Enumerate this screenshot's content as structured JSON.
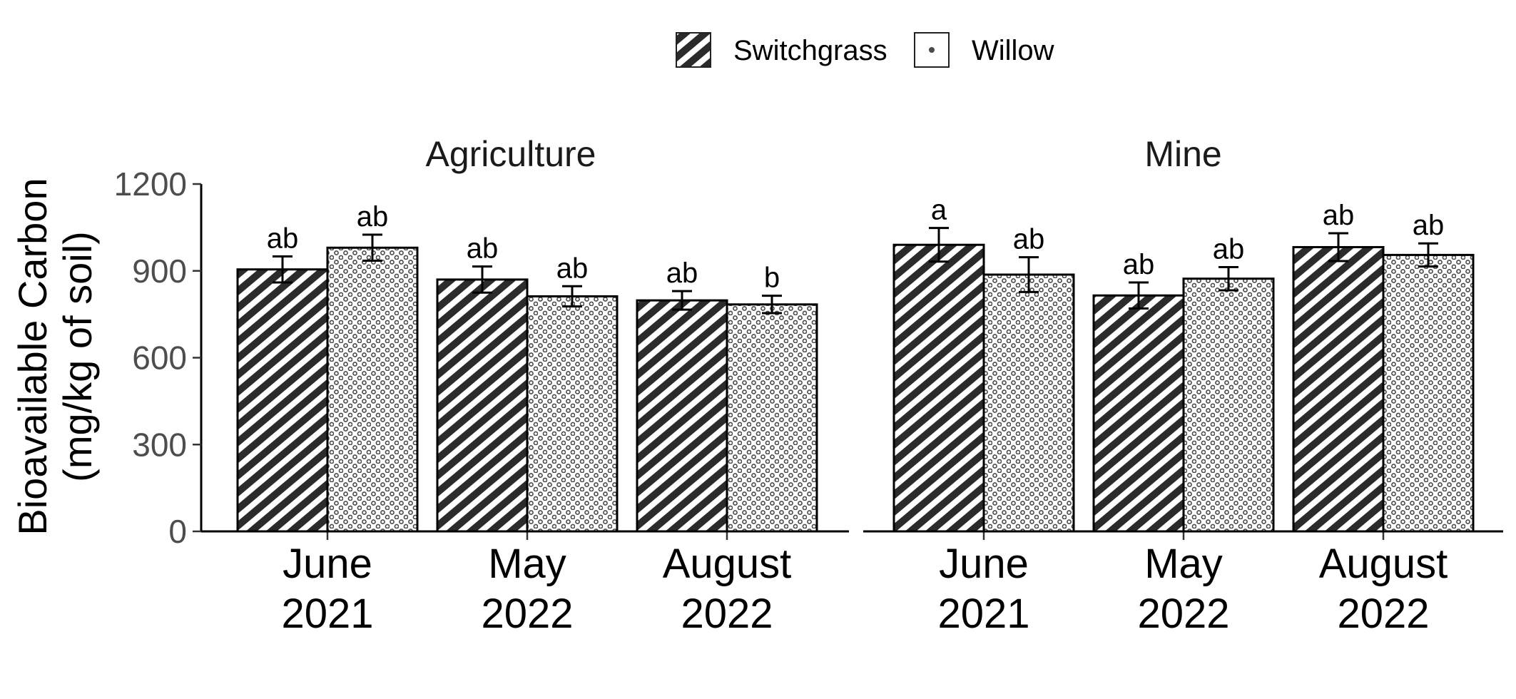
{
  "chart_data": {
    "type": "bar",
    "ylabel_lines": [
      "Bioavailable Carbon",
      "(mg/kg of soil)"
    ],
    "ylim": [
      0,
      1200
    ],
    "yticks": [
      0,
      300,
      600,
      900,
      1200
    ],
    "categories": [
      [
        "June",
        "2021"
      ],
      [
        "May",
        "2022"
      ],
      [
        "August",
        "2022"
      ]
    ],
    "legend": {
      "position": "top",
      "entries": [
        "Switchgrass",
        "Willow"
      ]
    },
    "grid": false,
    "panels": [
      {
        "title": "Agriculture",
        "series": [
          {
            "name": "Switchgrass",
            "values": [
              905,
              870,
              798
            ],
            "errors": [
              45,
              45,
              32
            ],
            "labels": [
              "ab",
              "ab",
              "ab"
            ]
          },
          {
            "name": "Willow",
            "values": [
              980,
              812,
              784
            ],
            "errors": [
              45,
              35,
              30
            ],
            "labels": [
              "ab",
              "ab",
              "b"
            ]
          }
        ]
      },
      {
        "title": "Mine",
        "series": [
          {
            "name": "Switchgrass",
            "values": [
              990,
              815,
              982
            ],
            "errors": [
              58,
              45,
              48
            ],
            "labels": [
              "a",
              "ab",
              "ab"
            ]
          },
          {
            "name": "Willow",
            "values": [
              887,
              873,
              955
            ],
            "errors": [
              60,
              40,
              40
            ],
            "labels": [
              "ab",
              "ab",
              "ab"
            ]
          }
        ]
      }
    ]
  }
}
